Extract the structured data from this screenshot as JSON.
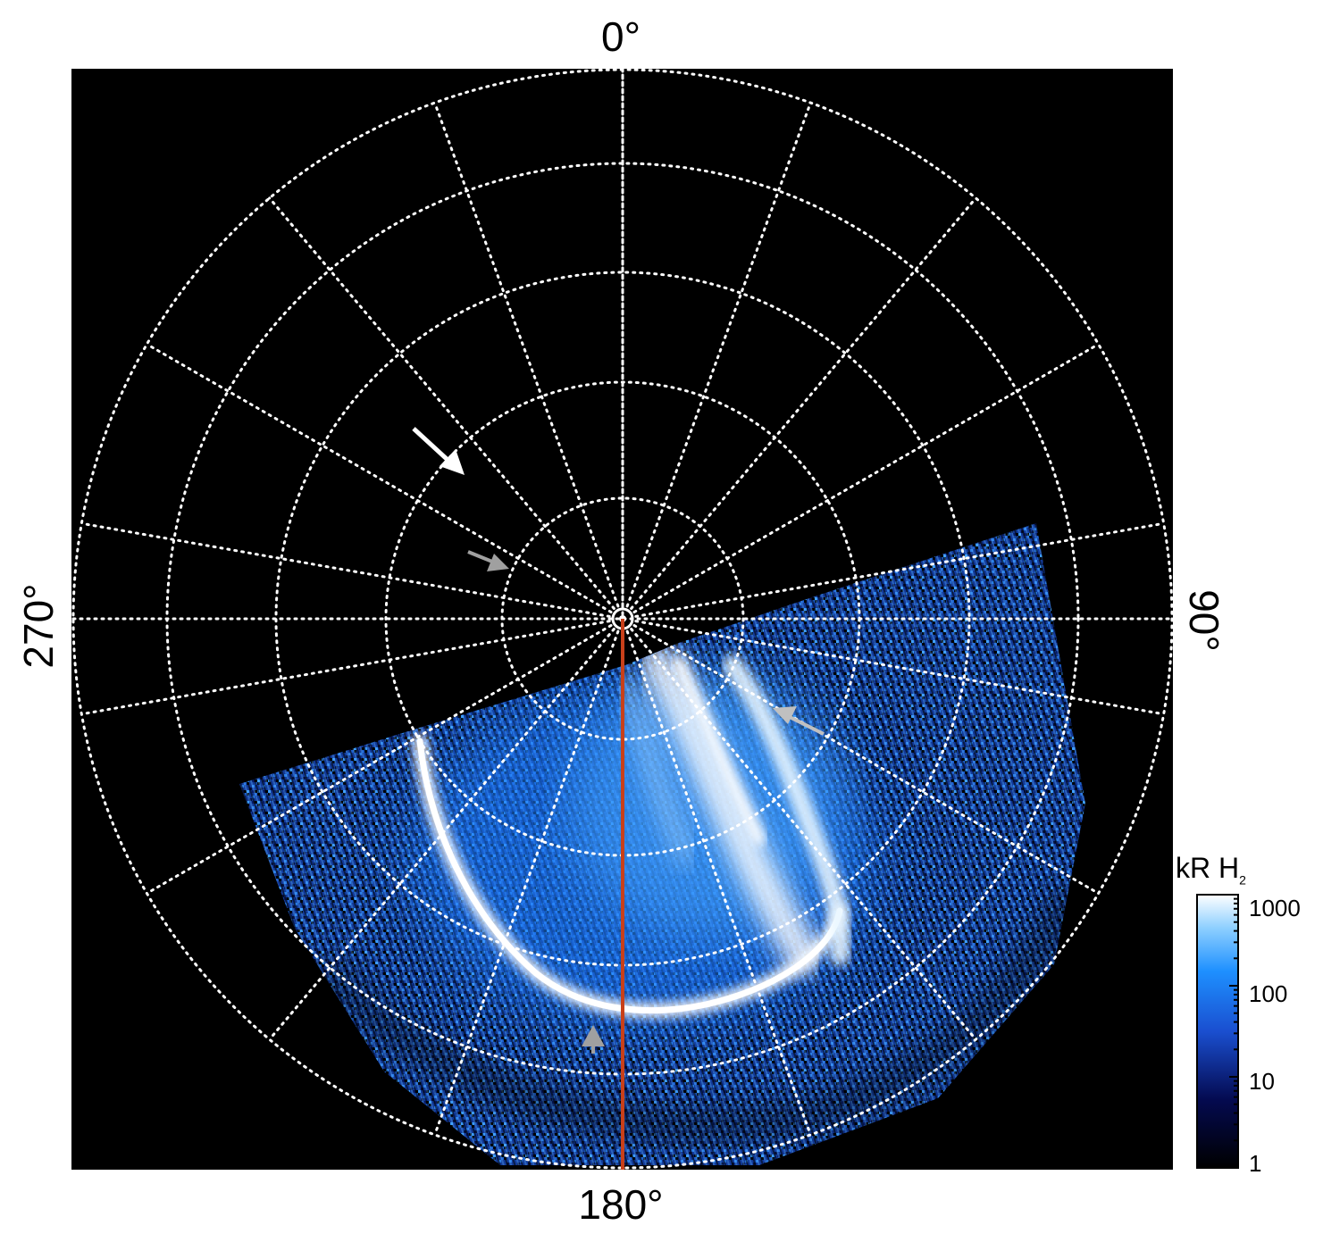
{
  "labels": {
    "top": "0°",
    "right": "90°",
    "bottom": "180°",
    "left": "270°"
  },
  "colorbar": {
    "title": "kR H",
    "title_sub": "2",
    "ticks": [
      "1000",
      "100",
      "10",
      "1"
    ],
    "scale": "log"
  },
  "colors": {
    "background": "#000000",
    "grid": "#ffffff",
    "meridian_line": "#c8401a",
    "aurora_low": "#0a1a6e",
    "aurora_mid": "#1e90ff",
    "aurora_high": "#ffffff",
    "arrow_white": "#ffffff",
    "arrow_grey": "#a0a0a0"
  },
  "annotations": {
    "arrows": [
      "white-arrow",
      "grey-arrow-upper",
      "grey-arrow-right",
      "grey-arrow-bottom"
    ]
  }
}
